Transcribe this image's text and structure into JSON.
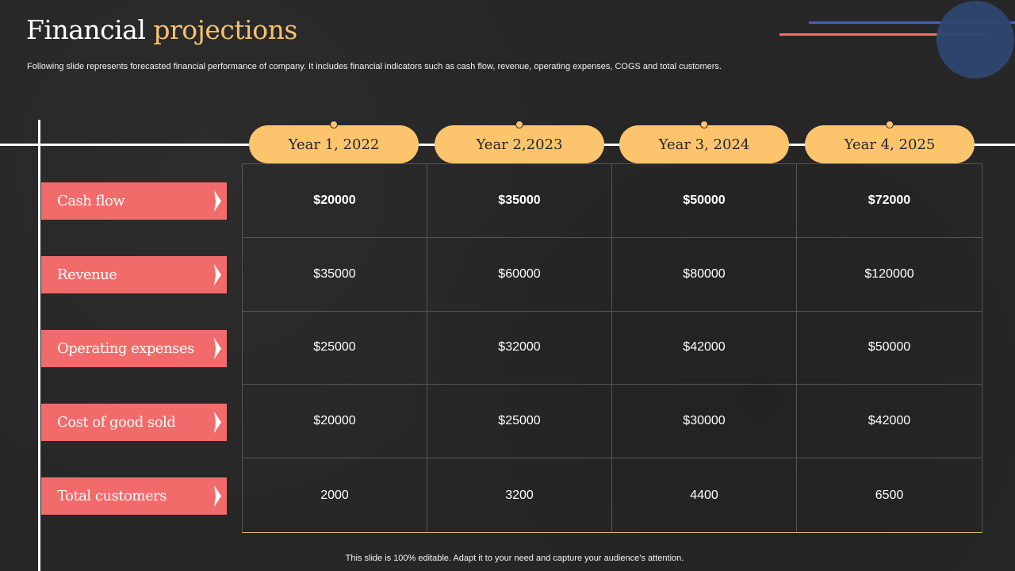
{
  "title": {
    "word1": "Financial",
    "word2": "projections"
  },
  "subtitle": "Following slide represents forecasted financial performance of company. It includes financial indicators such as cash flow, revenue, operating expenses, COGS and total customers.",
  "years": [
    "Year 1, 2022",
    "Year 2,2023",
    "Year 3, 2024",
    "Year 4, 2025"
  ],
  "rows": [
    {
      "label": "Cash flow",
      "values": [
        "$20000",
        "$35000",
        "$50000",
        "$72000"
      ]
    },
    {
      "label": "Revenue",
      "values": [
        "$35000",
        "$60000",
        "$80000",
        "$120000"
      ]
    },
    {
      "label": "Operating expenses",
      "values": [
        "$25000",
        "$32000",
        "$42000",
        "$50000"
      ]
    },
    {
      "label": "Cost of good sold",
      "values": [
        "$20000",
        "$25000",
        "$30000",
        "$42000"
      ]
    },
    {
      "label": "Total customers",
      "values": [
        "2000",
        "3200",
        "4400",
        "6500"
      ]
    }
  ],
  "footer": "This slide is 100% editable. Adapt it to your need and capture your audience’s attention.",
  "colors": {
    "background": "#272727",
    "accent_yellow": "#fcc56d",
    "accent_red": "#f26b6b",
    "accent_blue": "#3f64b4",
    "circle": "#2e4670"
  }
}
